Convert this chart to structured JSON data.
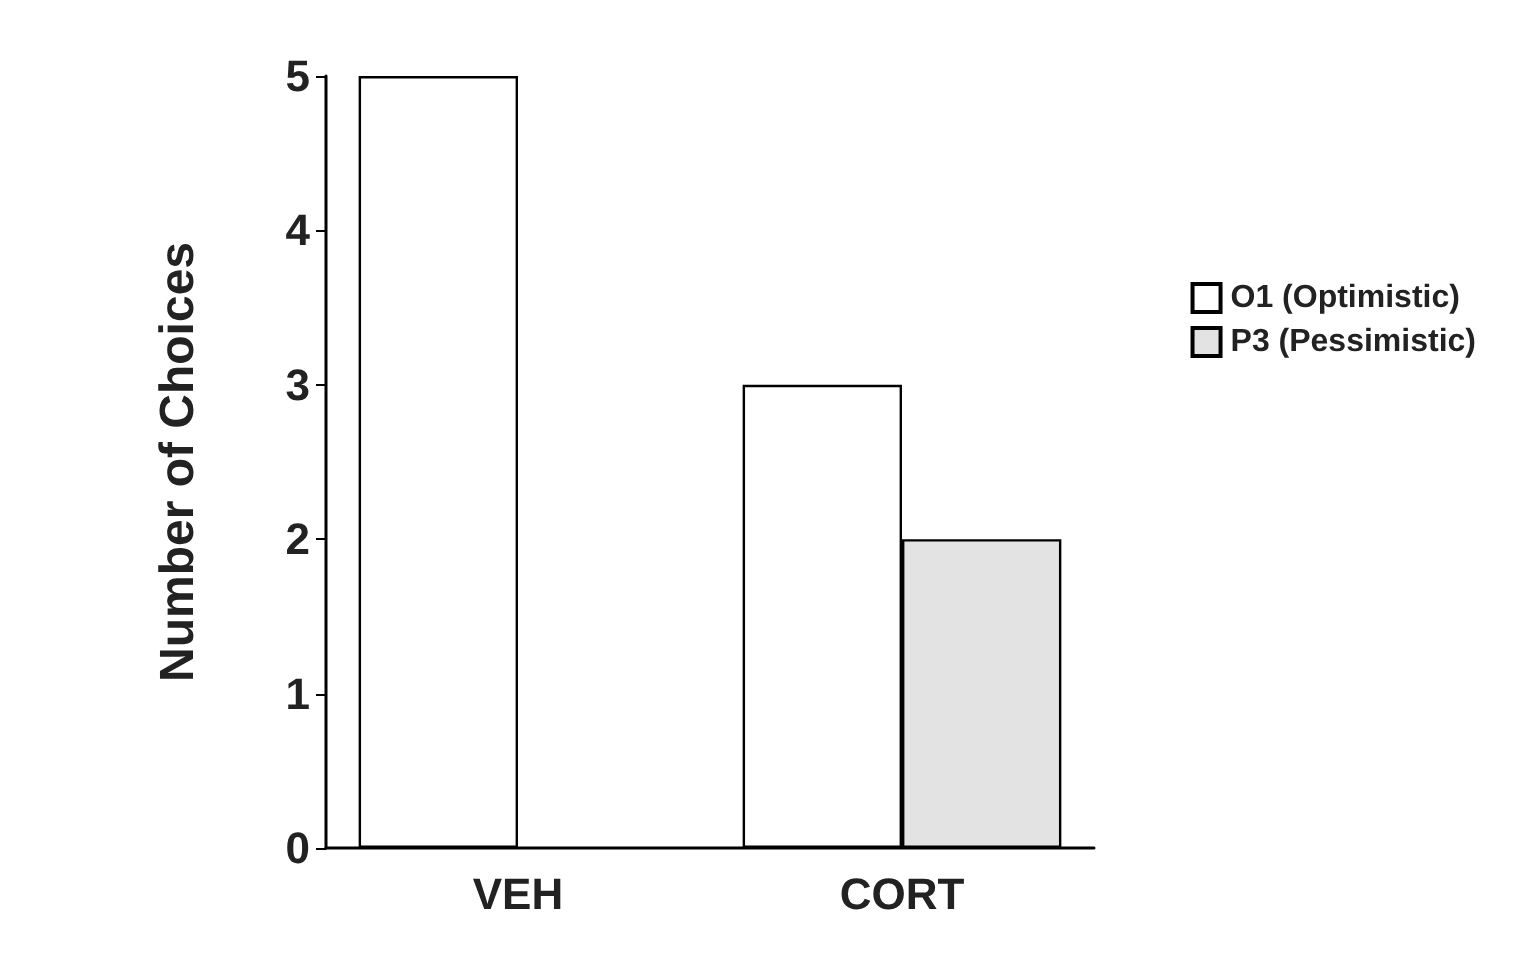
{
  "chart_data": {
    "type": "bar",
    "ylabel": "Number of Choices",
    "categories": [
      "VEH",
      "CORT"
    ],
    "series": [
      {
        "name": "O1 (Optimistic)",
        "color": "#ffffff",
        "values": [
          5,
          3
        ]
      },
      {
        "name": "P3 (Pessimistic)",
        "color": "#e3e3e3",
        "values": [
          0,
          2
        ]
      }
    ],
    "ylim": [
      0,
      5
    ],
    "yticks": [
      0,
      1,
      2,
      3,
      4,
      5
    ],
    "grid": false,
    "legend": "right"
  }
}
